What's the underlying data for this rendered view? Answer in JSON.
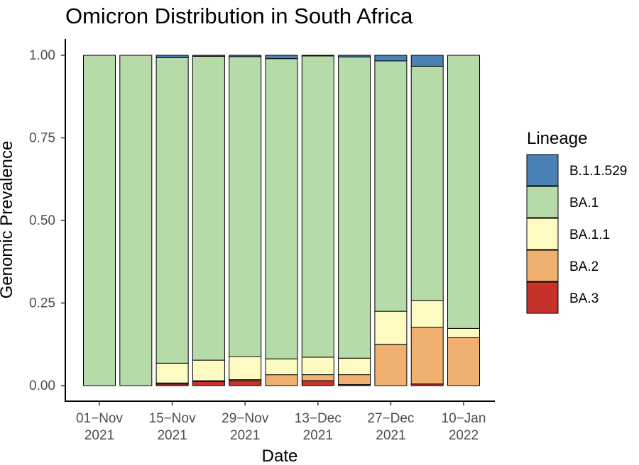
{
  "chart_data": {
    "type": "bar",
    "stacked": true,
    "title": "Omicron Distribution in South Africa",
    "xlabel": "Date",
    "ylabel": "Genomic Prevalence",
    "ylim": [
      0,
      1
    ],
    "y_ticks": [
      "0.00",
      "0.25",
      "0.50",
      "0.75",
      "1.00"
    ],
    "x_ticks": [
      {
        "line1": "01−Nov",
        "line2": "2021"
      },
      {
        "line1": "15−Nov",
        "line2": "2021"
      },
      {
        "line1": "29−Nov",
        "line2": "2021"
      },
      {
        "line1": "13−Dec",
        "line2": "2021"
      },
      {
        "line1": "27−Dec",
        "line2": "2021"
      },
      {
        "line1": "10−Jan",
        "line2": "2022"
      }
    ],
    "categories": [
      "2021-11-01",
      "2021-11-08",
      "2021-11-15",
      "2021-11-22",
      "2021-11-29",
      "2021-12-06",
      "2021-12-13",
      "2021-12-20",
      "2021-12-27",
      "2022-01-03",
      "2022-01-10"
    ],
    "legend_title": "Lineage",
    "legend_position": "right",
    "grid": false,
    "series": [
      {
        "name": "BA.3",
        "color": "#c6322a",
        "values": [
          0,
          0,
          0.005,
          0.012,
          0.015,
          0,
          0.015,
          0.003,
          0,
          0.005,
          0
        ]
      },
      {
        "name": "BA.2",
        "color": "#f0b06f",
        "values": [
          0,
          0,
          0.003,
          0.003,
          0.003,
          0.033,
          0.018,
          0.03,
          0.125,
          0.172,
          0.145
        ]
      },
      {
        "name": "BA.1.1",
        "color": "#fefbc2",
        "values": [
          0,
          0,
          0.06,
          0.062,
          0.07,
          0.048,
          0.053,
          0.05,
          0.1,
          0.081,
          0.028
        ]
      },
      {
        "name": "BA.1",
        "color": "#b6dba8",
        "values": [
          1,
          1,
          0.925,
          0.92,
          0.908,
          0.909,
          0.912,
          0.912,
          0.758,
          0.709,
          0.827
        ]
      },
      {
        "name": "B.1.1.529",
        "color": "#4a82b8",
        "values": [
          0,
          0,
          0.007,
          0.003,
          0.004,
          0.01,
          0.002,
          0.005,
          0.017,
          0.033,
          0
        ]
      }
    ],
    "legend_order": [
      "B.1.1.529",
      "BA.1",
      "BA.1.1",
      "BA.2",
      "BA.3"
    ]
  }
}
